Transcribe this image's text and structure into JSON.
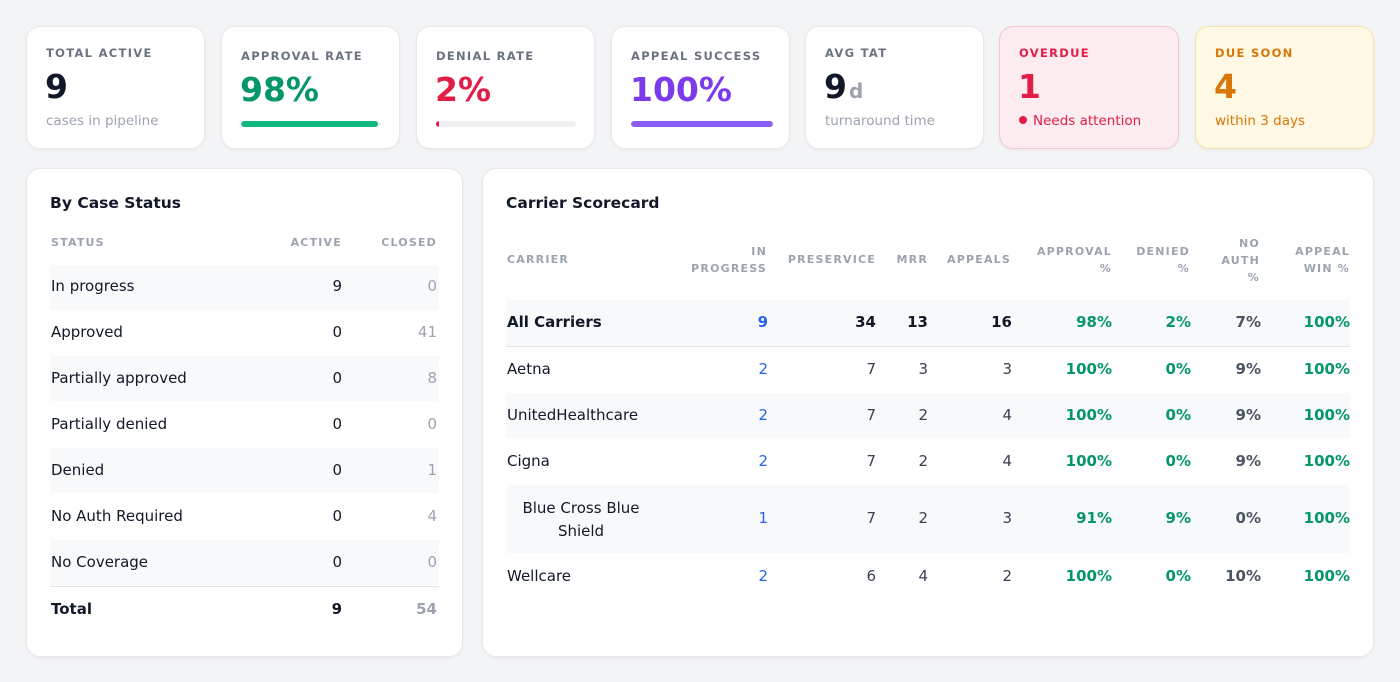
{
  "kpis": {
    "total_active": {
      "label": "TOTAL ACTIVE",
      "value": "9",
      "sub": "cases in pipeline"
    },
    "approval_rate": {
      "label": "APPROVAL RATE",
      "value": "98%",
      "progress": 0.98
    },
    "denial_rate": {
      "label": "DENIAL RATE",
      "value": "2%",
      "progress": 0.02
    },
    "appeal_success": {
      "label": "APPEAL SUCCESS",
      "value": "100%",
      "progress": 1.0
    },
    "avg_tat": {
      "label": "AVG TAT",
      "value": "9",
      "unit": "d",
      "sub": "turnaround time"
    },
    "overdue": {
      "label": "OVERDUE",
      "value": "1",
      "sub": "Needs attention"
    },
    "due_soon": {
      "label": "DUE SOON",
      "value": "4",
      "sub": "within 3 days"
    }
  },
  "colors": {
    "approval": "#10b981",
    "denial": "#e11d48",
    "appeal": "#8b5cf6",
    "overdue": "#e11d48",
    "due_soon": "#d97706",
    "link": "#2563eb",
    "positive": "#059669"
  },
  "status_panel": {
    "title": "By Case Status",
    "headers": {
      "status": "STATUS",
      "active": "ACTIVE",
      "closed": "CLOSED"
    },
    "rows": [
      {
        "status": "In progress",
        "active": "9",
        "closed": "0"
      },
      {
        "status": "Approved",
        "active": "0",
        "closed": "41"
      },
      {
        "status": "Partially approved",
        "active": "0",
        "closed": "8"
      },
      {
        "status": "Partially denied",
        "active": "0",
        "closed": "0"
      },
      {
        "status": "Denied",
        "active": "0",
        "closed": "1"
      },
      {
        "status": "No Auth Required",
        "active": "0",
        "closed": "4"
      },
      {
        "status": "No Coverage",
        "active": "0",
        "closed": "0"
      }
    ],
    "total": {
      "status": "Total",
      "active": "9",
      "closed": "54"
    }
  },
  "scorecard": {
    "title": "Carrier Scorecard",
    "headers": {
      "carrier": "CARRIER",
      "in_progress_1": "IN",
      "in_progress_2": "PROGRESS",
      "preservice": "PRESERVICE",
      "mrr": "MRR",
      "appeals": "APPEALS",
      "approval_1": "APPROVAL",
      "approval_2": "%",
      "denied_1": "DENIED",
      "denied_2": "%",
      "no_auth_1": "NO",
      "no_auth_2": "AUTH",
      "no_auth_3": "%",
      "appeal_win_1": "APPEAL",
      "appeal_win_2": "WIN %"
    },
    "summary": {
      "carrier": "All Carriers",
      "in_progress": "9",
      "preservice": "34",
      "mrr": "13",
      "appeals": "16",
      "approval": "98%",
      "denied": "2%",
      "no_auth": "7%",
      "appeal_win": "100%"
    },
    "rows": [
      {
        "carrier": "Aetna",
        "in_progress": "2",
        "preservice": "7",
        "mrr": "3",
        "appeals": "3",
        "approval": "100%",
        "denied": "0%",
        "no_auth": "9%",
        "appeal_win": "100%"
      },
      {
        "carrier": "UnitedHealthcare",
        "in_progress": "2",
        "preservice": "7",
        "mrr": "2",
        "appeals": "4",
        "approval": "100%",
        "denied": "0%",
        "no_auth": "9%",
        "appeal_win": "100%"
      },
      {
        "carrier": "Cigna",
        "in_progress": "2",
        "preservice": "7",
        "mrr": "2",
        "appeals": "4",
        "approval": "100%",
        "denied": "0%",
        "no_auth": "9%",
        "appeal_win": "100%"
      },
      {
        "carrier_1": "Blue Cross Blue",
        "carrier_2": "Shield",
        "in_progress": "1",
        "preservice": "7",
        "mrr": "2",
        "appeals": "3",
        "approval": "91%",
        "denied": "9%",
        "no_auth": "0%",
        "appeal_win": "100%"
      },
      {
        "carrier": "Wellcare",
        "in_progress": "2",
        "preservice": "6",
        "mrr": "4",
        "appeals": "2",
        "approval": "100%",
        "denied": "0%",
        "no_auth": "10%",
        "appeal_win": "100%"
      }
    ]
  }
}
